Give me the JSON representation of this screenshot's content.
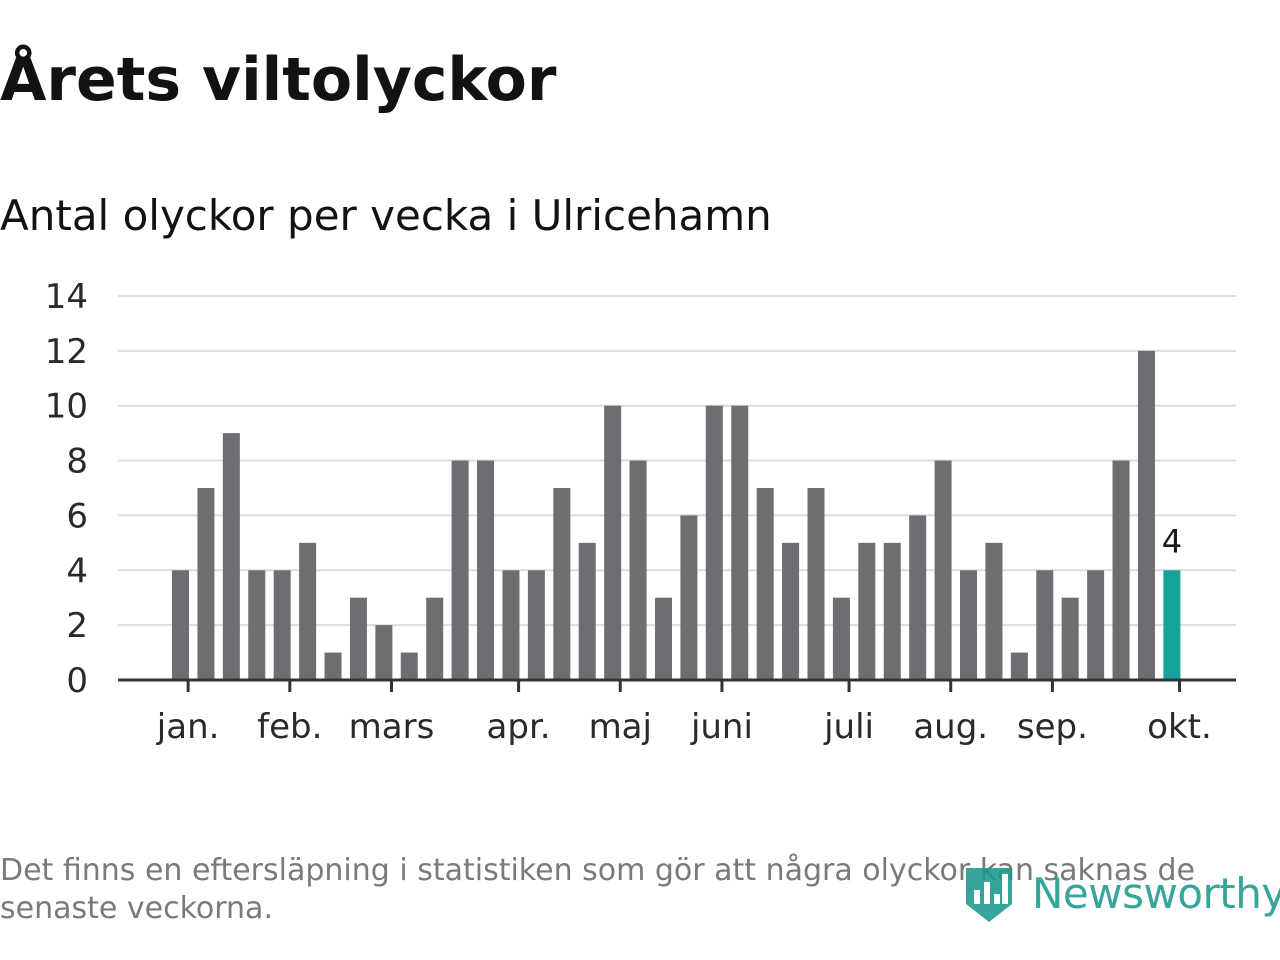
{
  "title": "Årets viltolyckor",
  "subtitle": "Antal olyckor per vecka i Ulricehamn",
  "footnote": "Det finns en eftersläpning i statistiken som gör att några olyckor kan saknas de senaste veckorna.",
  "logo_text": "Newsworthy",
  "colors": {
    "bar": "#6d6d72",
    "highlight": "#16a39a",
    "grid": "#dcdcdc",
    "axis": "#333333",
    "text": "#121212",
    "footnote": "#7a7a7a",
    "brand": "#1a9a8c"
  },
  "chart_data": {
    "type": "bar",
    "title": "Årets viltolyckor",
    "subtitle": "Antal olyckor per vecka i Ulricehamn",
    "ylim": [
      0,
      14
    ],
    "yticks": [
      "0",
      "2",
      "4",
      "6",
      "8",
      "10",
      "12",
      "14"
    ],
    "grid": true,
    "values": [
      4,
      7,
      9,
      4,
      4,
      5,
      1,
      3,
      2,
      1,
      3,
      8,
      8,
      4,
      4,
      7,
      5,
      10,
      8,
      3,
      6,
      10,
      10,
      7,
      5,
      7,
      3,
      5,
      5,
      6,
      8,
      4,
      5,
      1,
      4,
      3,
      4,
      8,
      12,
      4
    ],
    "highlight_index": 39,
    "highlight_label": "4",
    "month_ticks": [
      {
        "label": "jan.",
        "week_index": 0.3
      },
      {
        "label": "feb.",
        "week_index": 4.3
      },
      {
        "label": "mars",
        "week_index": 8.3
      },
      {
        "label": "apr.",
        "week_index": 13.3
      },
      {
        "label": "maj",
        "week_index": 17.3
      },
      {
        "label": "juni",
        "week_index": 21.3
      },
      {
        "label": "juli",
        "week_index": 26.3
      },
      {
        "label": "aug.",
        "week_index": 30.3
      },
      {
        "label": "sep.",
        "week_index": 34.3
      },
      {
        "label": "okt.",
        "week_index": 39.3
      }
    ]
  }
}
